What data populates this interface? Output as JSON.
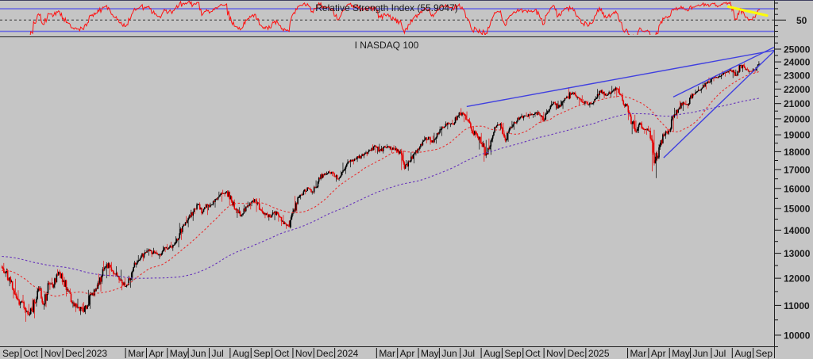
{
  "window_title": "I NASDAQ 100",
  "chart_data": {
    "type": "candlestick",
    "rsi": {
      "type": "line",
      "title": "Relative Strength Index (55.9047)",
      "current_value": 55.9047,
      "line_color": "#ff1010",
      "band_levels": [
        70,
        30
      ],
      "band_color": "#6a6ae0",
      "mid_level": 50,
      "axis_label": "50",
      "period": 14,
      "trendline": {
        "color": "#ffff00",
        "from_week": 151,
        "from_value": 73.5,
        "to_week": 159,
        "to_value": 58
      }
    },
    "price": {
      "title": "I NASDAQ 100",
      "scale": "log",
      "ylim": [
        9800,
        25600
      ],
      "resolution": "weekly",
      "up_color": "#000000",
      "down_color": "#e60000",
      "x_range": [
        "Sep 2022",
        "Sep 2025"
      ],
      "weeks": [
        [
          12450,
          12600,
          12050,
          12250
        ],
        [
          12250,
          12380,
          11700,
          11850
        ],
        [
          11850,
          11980,
          11250,
          11400
        ],
        [
          11400,
          11550,
          10900,
          11100
        ],
        [
          11100,
          11380,
          10740,
          10900
        ],
        [
          10900,
          11050,
          10440,
          10700
        ],
        [
          10700,
          11250,
          10560,
          11100
        ],
        [
          11100,
          11700,
          10960,
          11550
        ],
        [
          11550,
          11650,
          10850,
          11050
        ],
        [
          11050,
          11900,
          10940,
          11800
        ],
        [
          11800,
          12020,
          11560,
          11750
        ],
        [
          11750,
          12350,
          11620,
          12250
        ],
        [
          12250,
          12330,
          11750,
          11900
        ],
        [
          11900,
          12050,
          11320,
          11500
        ],
        [
          11500,
          11610,
          10920,
          11100
        ],
        [
          11100,
          11240,
          10770,
          10950
        ],
        [
          10950,
          11070,
          10670,
          10800
        ],
        [
          10800,
          11120,
          10700,
          11000
        ],
        [
          11000,
          11560,
          10880,
          11450
        ],
        [
          11450,
          11760,
          11320,
          11600
        ],
        [
          11600,
          12180,
          11500,
          12100
        ],
        [
          12100,
          12690,
          12000,
          12550
        ],
        [
          12550,
          12640,
          12070,
          12300
        ],
        [
          12300,
          12470,
          12060,
          12200
        ],
        [
          12200,
          12330,
          11820,
          11950
        ],
        [
          11950,
          12030,
          11550,
          11700
        ],
        [
          11700,
          12100,
          11640,
          12000
        ],
        [
          12000,
          12620,
          11900,
          12550
        ],
        [
          12550,
          12920,
          12420,
          12800
        ],
        [
          12800,
          13140,
          12680,
          13050
        ],
        [
          13050,
          13210,
          12900,
          13100
        ],
        [
          13100,
          13230,
          12850,
          13000
        ],
        [
          13000,
          13120,
          12760,
          12950
        ],
        [
          12950,
          13320,
          12850,
          13250
        ],
        [
          13250,
          13390,
          13050,
          13250
        ],
        [
          13250,
          13490,
          13100,
          13350
        ],
        [
          13350,
          13730,
          13250,
          13650
        ],
        [
          13650,
          14330,
          13570,
          14250
        ],
        [
          14250,
          14640,
          14130,
          14550
        ],
        [
          14550,
          14940,
          14420,
          14850
        ],
        [
          14850,
          15280,
          14740,
          15200
        ],
        [
          15200,
          15300,
          14690,
          14850
        ],
        [
          14850,
          15230,
          14700,
          15150
        ],
        [
          15150,
          15290,
          14920,
          15200
        ],
        [
          15200,
          15540,
          15050,
          15450
        ],
        [
          15450,
          15840,
          15330,
          15750
        ],
        [
          15750,
          15930,
          15590,
          15850
        ],
        [
          15850,
          15910,
          15140,
          15350
        ],
        [
          15350,
          15450,
          14780,
          14950
        ],
        [
          14950,
          15070,
          14560,
          14700
        ],
        [
          14700,
          15180,
          14600,
          15100
        ],
        [
          15100,
          15340,
          14960,
          15250
        ],
        [
          15250,
          15520,
          15120,
          15450
        ],
        [
          15450,
          15500,
          14840,
          14950
        ],
        [
          14950,
          15070,
          14550,
          14700
        ],
        [
          14700,
          14840,
          14430,
          14600
        ],
        [
          14600,
          14930,
          14450,
          14850
        ],
        [
          14850,
          14900,
          14390,
          14600
        ],
        [
          14600,
          14700,
          14190,
          14350
        ],
        [
          14350,
          14430,
          14060,
          14150
        ],
        [
          14150,
          15020,
          14110,
          14950
        ],
        [
          14950,
          15620,
          14850,
          15550
        ],
        [
          15550,
          15920,
          15450,
          15850
        ],
        [
          15850,
          16070,
          15700,
          16000
        ],
        [
          16000,
          16050,
          15690,
          15800
        ],
        [
          15800,
          16420,
          15720,
          16350
        ],
        [
          16350,
          16830,
          16250,
          16750
        ],
        [
          16750,
          16890,
          16580,
          16800
        ],
        [
          16800,
          16960,
          16640,
          16850
        ],
        [
          16850,
          16900,
          16350,
          16500
        ],
        [
          16500,
          16930,
          16400,
          16850
        ],
        [
          16850,
          17380,
          16760,
          17300
        ],
        [
          17300,
          17560,
          17120,
          17450
        ],
        [
          17450,
          17690,
          17280,
          17600
        ],
        [
          17600,
          17850,
          17420,
          17750
        ],
        [
          17750,
          18040,
          17630,
          17950
        ],
        [
          17950,
          18130,
          17740,
          18050
        ],
        [
          18050,
          18420,
          17940,
          18300
        ],
        [
          18300,
          18460,
          17870,
          18050
        ],
        [
          18050,
          18340,
          17900,
          18250
        ],
        [
          18250,
          18440,
          18090,
          18300
        ],
        [
          18300,
          18370,
          17920,
          18100
        ],
        [
          18100,
          18330,
          17810,
          18000
        ],
        [
          18000,
          18060,
          16970,
          17050
        ],
        [
          17050,
          17520,
          16930,
          17450
        ],
        [
          17450,
          17960,
          17340,
          17900
        ],
        [
          17900,
          18230,
          17780,
          18150
        ],
        [
          18150,
          18710,
          18060,
          18650
        ],
        [
          18650,
          18920,
          18480,
          18850
        ],
        [
          18850,
          18940,
          18410,
          18550
        ],
        [
          18550,
          19120,
          18470,
          19050
        ],
        [
          19050,
          19520,
          18930,
          19450
        ],
        [
          19450,
          19830,
          19330,
          19750
        ],
        [
          19750,
          19940,
          19480,
          19700
        ],
        [
          19700,
          20220,
          19600,
          20150
        ],
        [
          20150,
          20690,
          20040,
          20400
        ],
        [
          20400,
          20480,
          19790,
          19950
        ],
        [
          19950,
          20060,
          19080,
          19250
        ],
        [
          19250,
          19530,
          18830,
          19050
        ],
        [
          19050,
          19110,
          18130,
          18450
        ],
        [
          18450,
          18690,
          17435,
          17900
        ],
        [
          17900,
          18780,
          17820,
          18650
        ],
        [
          18650,
          19510,
          18550,
          19450
        ],
        [
          19450,
          19790,
          19310,
          19700
        ],
        [
          19700,
          19750,
          18550,
          18650
        ],
        [
          18650,
          19530,
          18580,
          19450
        ],
        [
          19450,
          19860,
          19310,
          19750
        ],
        [
          19750,
          20150,
          19650,
          20060
        ],
        [
          20060,
          20330,
          19890,
          20200
        ],
        [
          20200,
          20420,
          20010,
          20250
        ],
        [
          20250,
          20460,
          20060,
          20300
        ],
        [
          20300,
          20550,
          20120,
          20350
        ],
        [
          20350,
          20450,
          19730,
          19900
        ],
        [
          19900,
          20620,
          19820,
          20500
        ],
        [
          20500,
          21180,
          20400,
          21100
        ],
        [
          21100,
          21190,
          20570,
          20750
        ],
        [
          20750,
          21230,
          20640,
          21150
        ],
        [
          21150,
          21540,
          21030,
          21450
        ],
        [
          21450,
          22130,
          21350,
          21750
        ],
        [
          21750,
          21830,
          21270,
          21450
        ],
        [
          21450,
          21560,
          20920,
          21100
        ],
        [
          21100,
          21290,
          20860,
          21020
        ],
        [
          21020,
          21190,
          20740,
          21000
        ],
        [
          21000,
          21510,
          20900,
          21400
        ],
        [
          21400,
          22010,
          21300,
          21900
        ],
        [
          21900,
          21980,
          21350,
          21550
        ],
        [
          21550,
          21880,
          21400,
          21750
        ],
        [
          21750,
          22220,
          21640,
          22100
        ],
        [
          22100,
          22190,
          21420,
          21600
        ],
        [
          21600,
          21720,
          20720,
          20900
        ],
        [
          20900,
          20980,
          19920,
          20150
        ],
        [
          20150,
          20260,
          19040,
          19250
        ],
        [
          19250,
          19890,
          19100,
          19750
        ],
        [
          19750,
          19830,
          19070,
          19300
        ],
        [
          19300,
          19560,
          19000,
          19250
        ],
        [
          19250,
          19310,
          16900,
          17350
        ],
        [
          17350,
          18420,
          16540,
          18250
        ],
        [
          18250,
          19080,
          18110,
          18950
        ],
        [
          18950,
          19380,
          18760,
          19250
        ],
        [
          19250,
          20180,
          19170,
          20100
        ],
        [
          20100,
          20720,
          20000,
          20600
        ],
        [
          20600,
          21190,
          20510,
          21100
        ],
        [
          21100,
          21210,
          20680,
          20900
        ],
        [
          20900,
          21730,
          20830,
          21650
        ],
        [
          21650,
          21960,
          21500,
          21850
        ],
        [
          21850,
          22190,
          21720,
          22100
        ],
        [
          22100,
          22530,
          21980,
          22450
        ],
        [
          22450,
          22830,
          22330,
          22750
        ],
        [
          22750,
          22990,
          22560,
          22850
        ],
        [
          22850,
          23130,
          22700,
          23050
        ],
        [
          23050,
          23330,
          22900,
          23250
        ],
        [
          23250,
          23460,
          23080,
          23350
        ],
        [
          23350,
          23420,
          22790,
          23000
        ],
        [
          23000,
          23810,
          22910,
          23750
        ],
        [
          23750,
          23900,
          23230,
          23400
        ],
        [
          23400,
          23570,
          23110,
          23300
        ],
        [
          23300,
          23520,
          23170,
          23400
        ],
        [
          23400,
          24050,
          23290,
          23850
        ]
      ],
      "moving_averages": [
        {
          "name": "MA50",
          "period_days": 50,
          "color": "#e83030",
          "style": "dashed",
          "start_value": 12300
        },
        {
          "name": "MA200",
          "period_days": 200,
          "color": "#6633bb",
          "style": "dashed",
          "start_value": 12870
        }
      ],
      "trendlines": [
        {
          "name": "primary-uptrend",
          "color": "#4040e0",
          "from_week": 96.5,
          "from_price": 20800,
          "to_week": 160.5,
          "to_price": 24900
        },
        {
          "name": "wedge-upper",
          "color": "#4040e0",
          "from_week": 139.5,
          "from_price": 21450,
          "to_week": 160.5,
          "to_price": 25150
        },
        {
          "name": "wedge-lower",
          "color": "#4040e0",
          "from_week": 137.5,
          "from_price": 17650,
          "to_week": 160.8,
          "to_price": 24950
        }
      ],
      "y_tick_labels": [
        "25000",
        "24000",
        "23000",
        "22000",
        "21000",
        "20000",
        "19000",
        "18000",
        "17000",
        "16000",
        "15000",
        "14000",
        "13000",
        "12000",
        "11000",
        "10000"
      ],
      "y_major_step": 1000,
      "y_minor_step": 500
    },
    "x_axis_months": [
      {
        "label": "Sep",
        "span": 1
      },
      {
        "label": "Oct",
        "span": 1
      },
      {
        "label": "Nov",
        "span": 1
      },
      {
        "label": "Dec",
        "span": 1
      },
      {
        "label": "2023",
        "span": 2
      },
      {
        "label": "Mar",
        "span": 1
      },
      {
        "label": "Apr",
        "span": 1
      },
      {
        "label": "May",
        "span": 1
      },
      {
        "label": "Jun",
        "span": 1
      },
      {
        "label": "Jul",
        "span": 1
      },
      {
        "label": "Aug",
        "span": 1
      },
      {
        "label": "Sep",
        "span": 1
      },
      {
        "label": "Oct",
        "span": 1
      },
      {
        "label": "Nov",
        "span": 1
      },
      {
        "label": "Dec",
        "span": 1
      },
      {
        "label": "2024",
        "span": 2
      },
      {
        "label": "Mar",
        "span": 1
      },
      {
        "label": "Apr",
        "span": 1
      },
      {
        "label": "May",
        "span": 1
      },
      {
        "label": "Jun",
        "span": 1
      },
      {
        "label": "Jul",
        "span": 1
      },
      {
        "label": "Aug",
        "span": 1
      },
      {
        "label": "Sep",
        "span": 1
      },
      {
        "label": "Oct",
        "span": 1
      },
      {
        "label": "Nov",
        "span": 1
      },
      {
        "label": "Dec",
        "span": 1
      },
      {
        "label": "2025",
        "span": 2
      },
      {
        "label": "Mar",
        "span": 1
      },
      {
        "label": "Apr",
        "span": 1
      },
      {
        "label": "May",
        "span": 1
      },
      {
        "label": "Jun",
        "span": 1
      },
      {
        "label": "Jul",
        "span": 1
      },
      {
        "label": "Aug",
        "span": 1
      },
      {
        "label": "Sep",
        "span": 1
      }
    ],
    "colors": {
      "background": "#c5c5c5",
      "axis_line": "#111111",
      "mid_dashed": "#333333"
    }
  }
}
